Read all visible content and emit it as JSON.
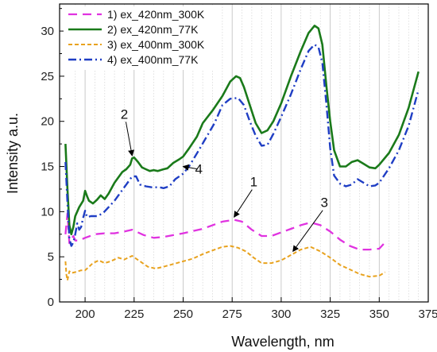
{
  "chart_data": {
    "type": "line",
    "title": "",
    "xlabel": "Wavelength, nm",
    "ylabel": "Intensity a.u.",
    "xlim": [
      187,
      375
    ],
    "ylim": [
      0,
      33
    ],
    "x_ticks": [
      200,
      225,
      250,
      275,
      300,
      325,
      350,
      375
    ],
    "y_ticks": [
      0,
      5,
      10,
      15,
      20,
      25,
      30
    ],
    "grid": "vertical major and minor lines",
    "legend": "top-left",
    "series": [
      {
        "name": "1) ex_420nm_300K",
        "color": "#e033e0",
        "style": "dashed",
        "points": [
          [
            190,
            7.5
          ],
          [
            191,
            9.8
          ],
          [
            192,
            6.5
          ],
          [
            193,
            7.0
          ],
          [
            194,
            7.3
          ],
          [
            195,
            6.8
          ],
          [
            197,
            6.8
          ],
          [
            200,
            7.1
          ],
          [
            205,
            7.5
          ],
          [
            210,
            7.6
          ],
          [
            215,
            7.6
          ],
          [
            220,
            7.8
          ],
          [
            224,
            8.0
          ],
          [
            230,
            7.4
          ],
          [
            235,
            7.1
          ],
          [
            240,
            7.2
          ],
          [
            250,
            7.6
          ],
          [
            260,
            8.1
          ],
          [
            270,
            8.9
          ],
          [
            276,
            9.1
          ],
          [
            280,
            8.9
          ],
          [
            285,
            8.0
          ],
          [
            290,
            7.3
          ],
          [
            295,
            7.3
          ],
          [
            300,
            7.7
          ],
          [
            305,
            8.1
          ],
          [
            310,
            8.5
          ],
          [
            315,
            8.8
          ],
          [
            320,
            8.5
          ],
          [
            325,
            7.8
          ],
          [
            330,
            6.9
          ],
          [
            335,
            6.2
          ],
          [
            340,
            5.8
          ],
          [
            345,
            5.8
          ],
          [
            350,
            5.9
          ],
          [
            353,
            6.6
          ]
        ]
      },
      {
        "name": "2) ex_420nm_77K",
        "color": "#1a7a1a",
        "style": "solid",
        "points": [
          [
            190,
            17.5
          ],
          [
            191,
            12.5
          ],
          [
            192,
            8.5
          ],
          [
            193,
            7.5
          ],
          [
            194,
            8.3
          ],
          [
            195,
            9.5
          ],
          [
            197,
            10.5
          ],
          [
            199,
            11.2
          ],
          [
            200,
            12.3
          ],
          [
            201,
            11.7
          ],
          [
            202,
            11.2
          ],
          [
            204,
            10.9
          ],
          [
            206,
            11.3
          ],
          [
            208,
            11.8
          ],
          [
            210,
            11.4
          ],
          [
            212,
            12.0
          ],
          [
            215,
            13.2
          ],
          [
            217,
            13.8
          ],
          [
            219,
            14.4
          ],
          [
            221,
            14.7
          ],
          [
            223,
            15.2
          ],
          [
            224,
            15.9
          ],
          [
            225,
            16.0
          ],
          [
            227,
            15.5
          ],
          [
            229,
            14.9
          ],
          [
            231,
            14.7
          ],
          [
            233,
            14.5
          ],
          [
            235,
            14.6
          ],
          [
            237,
            14.5
          ],
          [
            240,
            14.7
          ],
          [
            242,
            14.8
          ],
          [
            245,
            15.4
          ],
          [
            248,
            15.8
          ],
          [
            250,
            16.1
          ],
          [
            253,
            17.0
          ],
          [
            257,
            18.3
          ],
          [
            260,
            19.8
          ],
          [
            265,
            21.2
          ],
          [
            270,
            22.8
          ],
          [
            274,
            24.4
          ],
          [
            277,
            25.0
          ],
          [
            279,
            24.8
          ],
          [
            281,
            23.8
          ],
          [
            284,
            21.8
          ],
          [
            287,
            19.8
          ],
          [
            290,
            18.7
          ],
          [
            293,
            19.0
          ],
          [
            296,
            20.0
          ],
          [
            300,
            22.0
          ],
          [
            305,
            25.0
          ],
          [
            310,
            27.8
          ],
          [
            314,
            29.8
          ],
          [
            317,
            30.6
          ],
          [
            319,
            30.3
          ],
          [
            321,
            28.5
          ],
          [
            323,
            24.0
          ],
          [
            325,
            20.0
          ],
          [
            327,
            16.8
          ],
          [
            330,
            15.0
          ],
          [
            333,
            15.0
          ],
          [
            336,
            15.5
          ],
          [
            339,
            15.7
          ],
          [
            342,
            15.3
          ],
          [
            345,
            14.9
          ],
          [
            348,
            14.8
          ],
          [
            350,
            15.2
          ],
          [
            355,
            16.5
          ],
          [
            360,
            18.5
          ],
          [
            365,
            21.5
          ],
          [
            370,
            25.5
          ]
        ]
      },
      {
        "name": "3) ex_400nm_300K",
        "color": "#e8a21e",
        "style": "short-dashed",
        "points": [
          [
            190,
            4.5
          ],
          [
            190.5,
            3.0
          ],
          [
            191,
            2.4
          ],
          [
            192,
            3.4
          ],
          [
            193,
            3.2
          ],
          [
            195,
            3.3
          ],
          [
            198,
            3.5
          ],
          [
            200,
            3.5
          ],
          [
            204,
            4.3
          ],
          [
            207,
            4.6
          ],
          [
            210,
            4.3
          ],
          [
            213,
            4.5
          ],
          [
            217,
            4.9
          ],
          [
            220,
            4.7
          ],
          [
            224,
            5.1
          ],
          [
            228,
            4.5
          ],
          [
            232,
            3.9
          ],
          [
            236,
            3.7
          ],
          [
            240,
            3.9
          ],
          [
            245,
            4.2
          ],
          [
            250,
            4.5
          ],
          [
            255,
            4.8
          ],
          [
            260,
            5.3
          ],
          [
            265,
            5.7
          ],
          [
            270,
            6.1
          ],
          [
            274,
            6.2
          ],
          [
            278,
            6.0
          ],
          [
            282,
            5.6
          ],
          [
            286,
            4.9
          ],
          [
            290,
            4.3
          ],
          [
            295,
            4.3
          ],
          [
            300,
            4.6
          ],
          [
            305,
            5.2
          ],
          [
            310,
            5.8
          ],
          [
            315,
            6.1
          ],
          [
            320,
            5.6
          ],
          [
            325,
            4.9
          ],
          [
            330,
            4.1
          ],
          [
            335,
            3.6
          ],
          [
            340,
            3.1
          ],
          [
            345,
            2.8
          ],
          [
            350,
            2.9
          ],
          [
            353,
            3.3
          ]
        ]
      },
      {
        "name": "4) ex_400nm_77K",
        "color": "#1f3ec4",
        "style": "dash-dot",
        "points": [
          [
            190,
            15.5
          ],
          [
            191,
            11.0
          ],
          [
            192,
            7.0
          ],
          [
            193,
            6.2
          ],
          [
            194,
            6.6
          ],
          [
            195,
            7.5
          ],
          [
            196,
            8.7
          ],
          [
            197,
            8.0
          ],
          [
            198,
            8.3
          ],
          [
            199,
            9.3
          ],
          [
            200,
            10.1
          ],
          [
            201,
            9.4
          ],
          [
            203,
            9.5
          ],
          [
            206,
            9.5
          ],
          [
            209,
            9.8
          ],
          [
            212,
            10.5
          ],
          [
            215,
            11.2
          ],
          [
            218,
            12.1
          ],
          [
            221,
            13.0
          ],
          [
            224,
            13.9
          ],
          [
            226,
            13.9
          ],
          [
            228,
            13.0
          ],
          [
            231,
            12.8
          ],
          [
            234,
            12.7
          ],
          [
            238,
            12.7
          ],
          [
            240,
            12.6
          ],
          [
            243,
            12.8
          ],
          [
            246,
            13.6
          ],
          [
            250,
            14.2
          ],
          [
            253,
            15.0
          ],
          [
            258,
            16.8
          ],
          [
            262,
            18.3
          ],
          [
            266,
            19.8
          ],
          [
            270,
            21.8
          ],
          [
            274,
            22.5
          ],
          [
            278,
            22.6
          ],
          [
            281,
            21.8
          ],
          [
            284,
            20.0
          ],
          [
            287,
            18.4
          ],
          [
            290,
            17.3
          ],
          [
            293,
            17.4
          ],
          [
            296,
            18.6
          ],
          [
            300,
            20.5
          ],
          [
            305,
            23.0
          ],
          [
            310,
            25.8
          ],
          [
            314,
            27.8
          ],
          [
            317,
            28.5
          ],
          [
            319,
            28.2
          ],
          [
            321,
            26.5
          ],
          [
            323,
            22.0
          ],
          [
            325,
            17.0
          ],
          [
            327,
            14.0
          ],
          [
            330,
            13.1
          ],
          [
            333,
            12.8
          ],
          [
            336,
            13.0
          ],
          [
            339,
            13.6
          ],
          [
            342,
            13.2
          ],
          [
            345,
            12.8
          ],
          [
            348,
            12.9
          ],
          [
            350,
            13.2
          ],
          [
            355,
            14.8
          ],
          [
            360,
            16.8
          ],
          [
            365,
            19.5
          ],
          [
            370,
            23.5
          ]
        ]
      }
    ],
    "annotations": [
      {
        "label": "2",
        "text_x": 220,
        "text_y": 20.3,
        "arrow_to": [
          224,
          16.2
        ]
      },
      {
        "label": "4",
        "text_x": 258,
        "text_y": 14.2,
        "arrow_to": [
          250,
          15.0
        ]
      },
      {
        "label": "1",
        "text_x": 286,
        "text_y": 12.8,
        "arrow_to": [
          276,
          9.4
        ]
      },
      {
        "label": "3",
        "text_x": 322,
        "text_y": 10.5,
        "arrow_to": [
          306,
          5.6
        ]
      }
    ]
  }
}
